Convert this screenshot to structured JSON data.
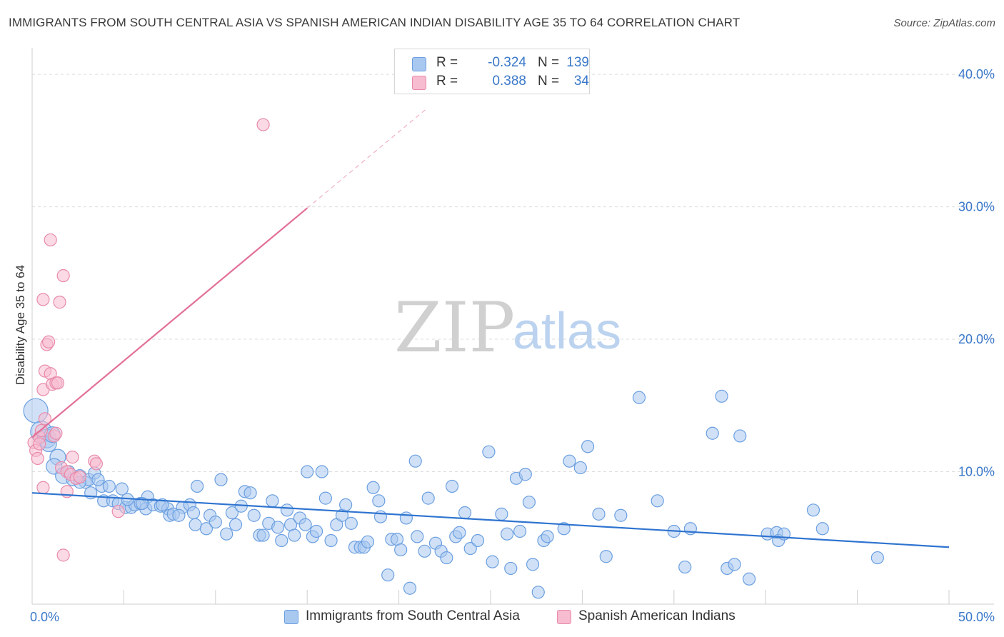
{
  "title": "IMMIGRANTS FROM SOUTH CENTRAL ASIA VS SPANISH AMERICAN INDIAN DISABILITY AGE 35 TO 64 CORRELATION CHART",
  "source": "Source: ZipAtlas.com",
  "watermark": {
    "zip": "ZIP",
    "atlas": "atlas"
  },
  "legend": {
    "r_label": "R =",
    "n_label": "N =",
    "series": [
      {
        "name": "Immigrants from South Central Asia",
        "r": "-0.324",
        "n": "139",
        "color": "#a9c8f0",
        "edge": "#6b9fe0"
      },
      {
        "name": "Spanish American Indians",
        "r": "0.388",
        "n": "34",
        "color": "#f7bcd0",
        "edge": "#e88aaa"
      }
    ]
  },
  "chart_data": {
    "type": "scatter",
    "title": "IMMIGRANTS FROM SOUTH CENTRAL ASIA VS SPANISH AMERICAN INDIAN DISABILITY AGE 35 TO 64 CORRELATION CHART",
    "xlabel": "",
    "ylabel": "Disability Age 35 to 64",
    "xlim": [
      0,
      50
    ],
    "ylim": [
      0,
      42
    ],
    "x_tick_labels": [
      "0.0%",
      "50.0%"
    ],
    "y_ticks": [
      10,
      20,
      30,
      40
    ],
    "y_tick_labels": [
      "10.0%",
      "20.0%",
      "30.0%",
      "40.0%"
    ],
    "grid": true,
    "series": [
      {
        "name": "Immigrants from South Central Asia",
        "color": "#6b9fe0",
        "fill": "#a9c8f0",
        "trend": {
          "x": [
            0,
            50
          ],
          "y": [
            8.4,
            4.3
          ],
          "color": "#2f74d0"
        },
        "points": [
          [
            0.2,
            14.6
          ],
          [
            0.5,
            13.0
          ],
          [
            0.8,
            12.5
          ],
          [
            0.9,
            12.1
          ],
          [
            1.1,
            12.8
          ],
          [
            1.4,
            11.1
          ],
          [
            1.2,
            10.4
          ],
          [
            1.7,
            9.7
          ],
          [
            2.0,
            10.0
          ],
          [
            2.2,
            9.4
          ],
          [
            2.6,
            9.7
          ],
          [
            2.9,
            9.2
          ],
          [
            3.1,
            9.4
          ],
          [
            3.4,
            9.9
          ],
          [
            3.2,
            8.4
          ],
          [
            3.8,
            8.9
          ],
          [
            4.2,
            8.9
          ],
          [
            3.9,
            7.8
          ],
          [
            4.4,
            7.8
          ],
          [
            4.9,
            8.7
          ],
          [
            4.7,
            7.6
          ],
          [
            5.1,
            7.3
          ],
          [
            5.4,
            7.3
          ],
          [
            5.6,
            7.5
          ],
          [
            5.9,
            7.6
          ],
          [
            6.2,
            7.2
          ],
          [
            6.3,
            8.1
          ],
          [
            6.6,
            7.5
          ],
          [
            7.0,
            7.4
          ],
          [
            7.4,
            7.2
          ],
          [
            7.5,
            6.7
          ],
          [
            7.7,
            6.8
          ],
          [
            8.2,
            7.3
          ],
          [
            8.6,
            7.5
          ],
          [
            8.8,
            6.9
          ],
          [
            8.9,
            6.0
          ],
          [
            9.0,
            8.9
          ],
          [
            9.5,
            5.7
          ],
          [
            9.7,
            6.7
          ],
          [
            10.0,
            6.2
          ],
          [
            10.3,
            9.4
          ],
          [
            10.6,
            5.3
          ],
          [
            10.9,
            6.9
          ],
          [
            11.1,
            6.0
          ],
          [
            11.4,
            7.4
          ],
          [
            11.6,
            8.5
          ],
          [
            11.9,
            8.4
          ],
          [
            12.1,
            6.7
          ],
          [
            12.4,
            5.2
          ],
          [
            12.6,
            5.2
          ],
          [
            12.9,
            6.1
          ],
          [
            13.1,
            7.8
          ],
          [
            13.4,
            5.8
          ],
          [
            13.6,
            4.8
          ],
          [
            13.9,
            7.1
          ],
          [
            14.1,
            6.0
          ],
          [
            14.3,
            5.2
          ],
          [
            14.6,
            6.5
          ],
          [
            14.9,
            6.0
          ],
          [
            15.0,
            10.0
          ],
          [
            15.3,
            5.1
          ],
          [
            15.5,
            5.5
          ],
          [
            15.8,
            10.0
          ],
          [
            16.0,
            8.0
          ],
          [
            16.3,
            4.8
          ],
          [
            16.6,
            6.0
          ],
          [
            16.9,
            6.7
          ],
          [
            17.1,
            7.5
          ],
          [
            17.4,
            6.1
          ],
          [
            17.6,
            4.3
          ],
          [
            17.9,
            4.3
          ],
          [
            18.1,
            4.3
          ],
          [
            18.3,
            4.7
          ],
          [
            18.6,
            8.8
          ],
          [
            18.9,
            7.8
          ],
          [
            19.0,
            6.6
          ],
          [
            19.4,
            2.2
          ],
          [
            19.6,
            4.9
          ],
          [
            19.9,
            4.9
          ],
          [
            20.1,
            4.1
          ],
          [
            20.4,
            6.5
          ],
          [
            20.6,
            1.2
          ],
          [
            20.9,
            10.8
          ],
          [
            21.0,
            5.1
          ],
          [
            21.4,
            4.0
          ],
          [
            21.6,
            8.0
          ],
          [
            22.0,
            4.6
          ],
          [
            22.3,
            4.0
          ],
          [
            22.6,
            3.5
          ],
          [
            22.9,
            8.9
          ],
          [
            23.1,
            5.1
          ],
          [
            23.3,
            5.4
          ],
          [
            23.6,
            6.9
          ],
          [
            23.9,
            4.2
          ],
          [
            24.3,
            4.8
          ],
          [
            24.9,
            11.5
          ],
          [
            25.1,
            3.2
          ],
          [
            25.6,
            6.8
          ],
          [
            25.9,
            5.3
          ],
          [
            26.1,
            2.7
          ],
          [
            26.4,
            9.5
          ],
          [
            26.6,
            5.5
          ],
          [
            26.9,
            9.8
          ],
          [
            27.1,
            7.7
          ],
          [
            27.3,
            3.0
          ],
          [
            27.6,
            0.9
          ],
          [
            27.9,
            4.8
          ],
          [
            28.1,
            5.1
          ],
          [
            29.0,
            5.7
          ],
          [
            29.3,
            10.8
          ],
          [
            29.9,
            10.3
          ],
          [
            30.3,
            11.9
          ],
          [
            30.9,
            6.8
          ],
          [
            31.3,
            3.6
          ],
          [
            32.1,
            6.7
          ],
          [
            33.1,
            15.6
          ],
          [
            34.1,
            7.8
          ],
          [
            35.0,
            5.5
          ],
          [
            35.6,
            2.8
          ],
          [
            35.9,
            5.7
          ],
          [
            37.1,
            12.9
          ],
          [
            37.6,
            15.7
          ],
          [
            37.9,
            2.7
          ],
          [
            38.3,
            3.0
          ],
          [
            38.6,
            12.7
          ],
          [
            39.1,
            1.9
          ],
          [
            40.1,
            5.3
          ],
          [
            40.6,
            5.4
          ],
          [
            40.7,
            4.8
          ],
          [
            41.0,
            5.3
          ],
          [
            42.6,
            7.1
          ],
          [
            43.1,
            5.7
          ],
          [
            46.1,
            3.5
          ],
          [
            2.6,
            9.2
          ],
          [
            3.6,
            9.4
          ],
          [
            5.2,
            7.9
          ],
          [
            6.0,
            7.6
          ],
          [
            7.1,
            7.5
          ],
          [
            8.0,
            6.7
          ]
        ]
      },
      {
        "name": "Spanish American Indians",
        "color": "#e88aaa",
        "fill": "#f7bcd0",
        "trend": {
          "x": [
            0,
            15
          ],
          "y": [
            12.6,
            29.9
          ],
          "dashed_to": [
            40,
            58
          ],
          "color": "#e36f98"
        },
        "points": [
          [
            0.1,
            12.2
          ],
          [
            0.2,
            11.6
          ],
          [
            0.3,
            11.0
          ],
          [
            0.4,
            12.6
          ],
          [
            0.5,
            13.1
          ],
          [
            0.6,
            8.8
          ],
          [
            0.6,
            16.2
          ],
          [
            0.7,
            17.6
          ],
          [
            0.6,
            23.0
          ],
          [
            0.7,
            14.0
          ],
          [
            0.8,
            19.6
          ],
          [
            0.9,
            19.8
          ],
          [
            1.0,
            27.5
          ],
          [
            1.0,
            17.4
          ],
          [
            1.1,
            16.6
          ],
          [
            1.3,
            16.7
          ],
          [
            1.2,
            12.7
          ],
          [
            1.3,
            12.9
          ],
          [
            1.5,
            22.8
          ],
          [
            1.7,
            24.8
          ],
          [
            1.6,
            10.3
          ],
          [
            1.9,
            10.0
          ],
          [
            1.9,
            8.5
          ],
          [
            2.1,
            9.8
          ],
          [
            2.2,
            11.1
          ],
          [
            2.4,
            9.5
          ],
          [
            2.6,
            9.6
          ],
          [
            3.4,
            10.8
          ],
          [
            3.5,
            10.6
          ],
          [
            4.7,
            7.0
          ],
          [
            1.7,
            3.7
          ],
          [
            12.6,
            36.2
          ],
          [
            0.4,
            12.1
          ],
          [
            1.4,
            16.7
          ]
        ]
      }
    ]
  }
}
